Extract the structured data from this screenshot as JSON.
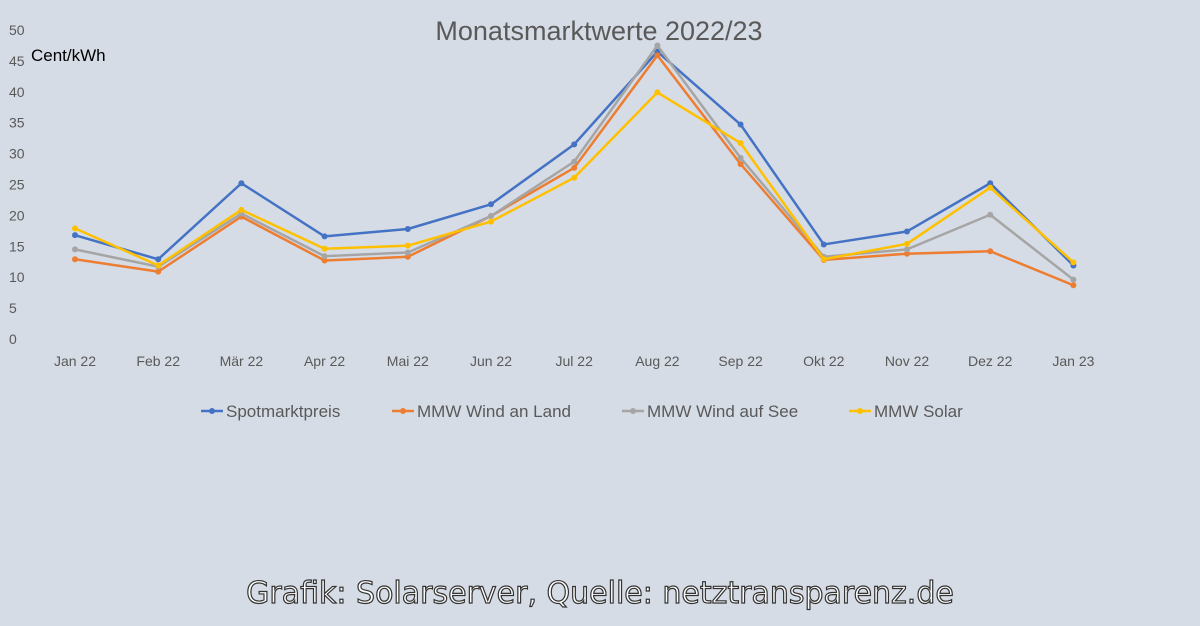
{
  "chart_data": {
    "type": "line",
    "title": "Monatsmarktwerte 2022/23",
    "ylabel": "Cent/kWh",
    "xlabel": "",
    "ylim": [
      0,
      50
    ],
    "yticks": [
      0,
      5,
      10,
      15,
      20,
      25,
      30,
      35,
      40,
      45,
      50
    ],
    "grid": false,
    "legend": "bottom",
    "categories": [
      "Jan 22",
      "Feb 22",
      "Mär 22",
      "Apr 22",
      "Mai 22",
      "Jun 22",
      "Jul 22",
      "Aug 22",
      "Sep 22",
      "Okt 22",
      "Nov 22",
      "Dez 22",
      "Jan 23"
    ],
    "series": [
      {
        "name": "Spotmarktpreis",
        "color": "#4472c4",
        "values": [
          16.8,
          12.9,
          25.2,
          16.6,
          17.8,
          21.8,
          31.5,
          46.5,
          34.7,
          15.3,
          17.4,
          25.2,
          11.9
        ]
      },
      {
        "name": "MMW Wind an Land",
        "color": "#ed7d31",
        "values": [
          12.9,
          10.9,
          19.8,
          12.7,
          13.3,
          19.9,
          27.7,
          45.9,
          28.3,
          12.8,
          13.8,
          14.2,
          8.7
        ]
      },
      {
        "name": "MMW Wind auf See",
        "color": "#a5a5a5",
        "values": [
          14.5,
          11.7,
          20.3,
          13.4,
          14.0,
          19.9,
          28.7,
          47.5,
          29.3,
          13.3,
          14.5,
          20.1,
          9.6
        ]
      },
      {
        "name": "MMW Solar",
        "color": "#ffc000",
        "values": [
          17.9,
          11.9,
          20.9,
          14.6,
          15.1,
          19.0,
          26.1,
          39.9,
          31.7,
          12.9,
          15.4,
          24.5,
          12.4
        ]
      }
    ]
  },
  "credit": "Grafik: Solarserver, Quelle: netztransparenz.de"
}
